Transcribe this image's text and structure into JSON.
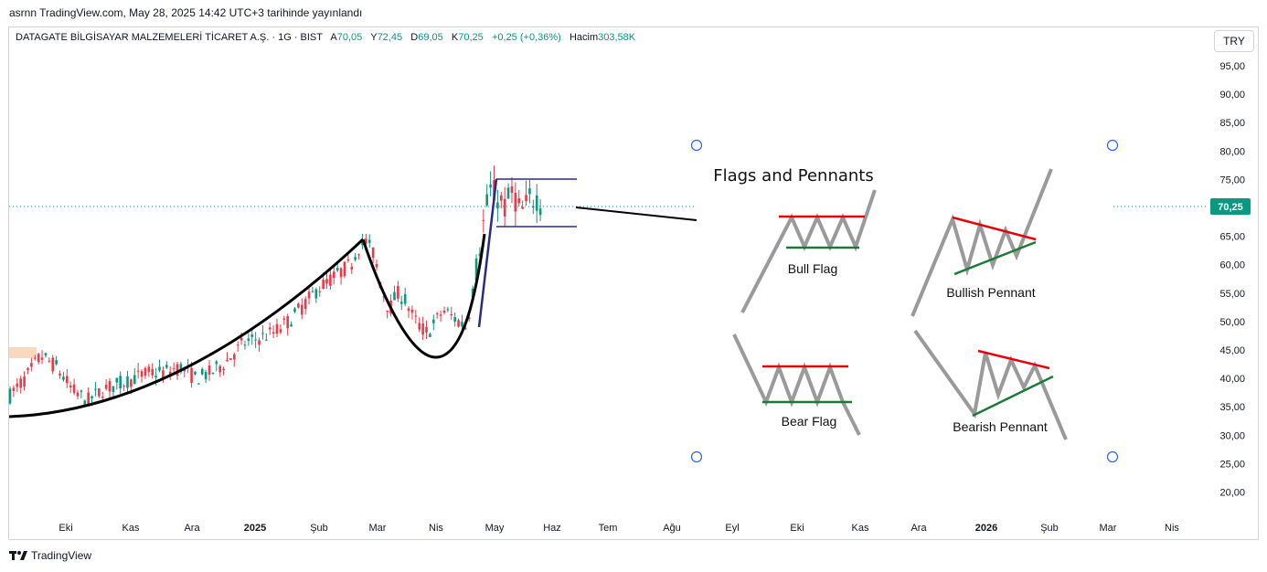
{
  "publication_line": "asrnn TradingView.com, May 28, 2025 14:42 UTC+3 tarihinde yayınlandı",
  "legend": {
    "symbol": "DATAGATE BİLGİSAYAR MALZEMELERİ TİCARET A.Ş. · 1G · BIST",
    "open_label": "A",
    "open": "70,05",
    "high_label": "Y",
    "high": "72,45",
    "low_label": "D",
    "low": "69,05",
    "close_label": "K",
    "close": "70,25",
    "change": "+0,25 (+0,36%)",
    "volume_label": "Hacim",
    "volume": "303,58K"
  },
  "currency_button": "TRY",
  "footer_brand": "TradingView",
  "colors": {
    "up": "#089981",
    "down": "#f23645",
    "last_price": "#089981",
    "accent_line": "#2a2a8a"
  },
  "chart_data": {
    "type": "candlestick",
    "title": "",
    "y_axis": {
      "ticks": [
        "95,00",
        "90,00",
        "85,00",
        "80,00",
        "75,00",
        "70,00",
        "65,00",
        "60,00",
        "55,00",
        "50,00",
        "45,00",
        "40,00",
        "35,00",
        "30,00",
        "25,00",
        "20,00"
      ],
      "tick_values": [
        95,
        90,
        85,
        80,
        75,
        70,
        65,
        60,
        55,
        50,
        45,
        40,
        35,
        30,
        25,
        20
      ],
      "range": [
        17,
        99
      ]
    },
    "x_axis": {
      "labels": [
        "Eki",
        "Kas",
        "Ara",
        "2025",
        "Şub",
        "Mar",
        "Nis",
        "May",
        "Haz",
        "Tem",
        "Ağu",
        "Eyl",
        "Eki",
        "Kas",
        "Ara",
        "2026",
        "Şub",
        "Mar",
        "Nis"
      ],
      "bold": [
        "2025",
        "2026"
      ]
    },
    "last_price": 70.25,
    "last_price_label": "70,25",
    "price_path": [
      [
        0,
        37
      ],
      [
        4,
        40
      ],
      [
        8,
        44
      ],
      [
        12,
        42
      ],
      [
        16,
        38
      ],
      [
        20,
        36
      ],
      [
        24,
        38
      ],
      [
        28,
        39
      ],
      [
        32,
        40
      ],
      [
        36,
        41
      ],
      [
        40,
        41
      ],
      [
        44,
        42
      ],
      [
        48,
        40
      ],
      [
        52,
        41
      ],
      [
        56,
        43
      ],
      [
        60,
        46
      ],
      [
        64,
        47
      ],
      [
        68,
        48
      ],
      [
        72,
        50
      ],
      [
        76,
        53
      ],
      [
        80,
        56
      ],
      [
        84,
        58
      ],
      [
        88,
        60
      ],
      [
        90,
        63
      ],
      [
        92,
        64
      ],
      [
        94,
        62
      ],
      [
        96,
        56
      ],
      [
        98,
        52
      ],
      [
        100,
        55
      ],
      [
        102,
        54
      ],
      [
        104,
        51
      ],
      [
        106,
        49
      ],
      [
        108,
        48
      ],
      [
        110,
        50
      ],
      [
        112,
        52
      ],
      [
        114,
        51
      ],
      [
        116,
        50
      ],
      [
        118,
        49
      ],
      [
        120,
        57
      ],
      [
        122,
        66
      ],
      [
        124,
        73
      ],
      [
        126,
        72
      ],
      [
        128,
        70
      ],
      [
        130,
        73
      ],
      [
        132,
        69
      ],
      [
        134,
        71
      ],
      [
        136,
        72
      ],
      [
        138,
        70
      ]
    ],
    "series_notes": {
      "cup_rim_peak": 64.5,
      "cup_bottom": 43.5,
      "flagpole_top": 75,
      "flag_channel": [
        74.5,
        66.5
      ]
    },
    "annotation_image": {
      "title": "Flags and Pennants",
      "labels": [
        "Bull Flag",
        "Bullish Pennant",
        "Bear Flag",
        "Bearish Pennant"
      ]
    }
  }
}
